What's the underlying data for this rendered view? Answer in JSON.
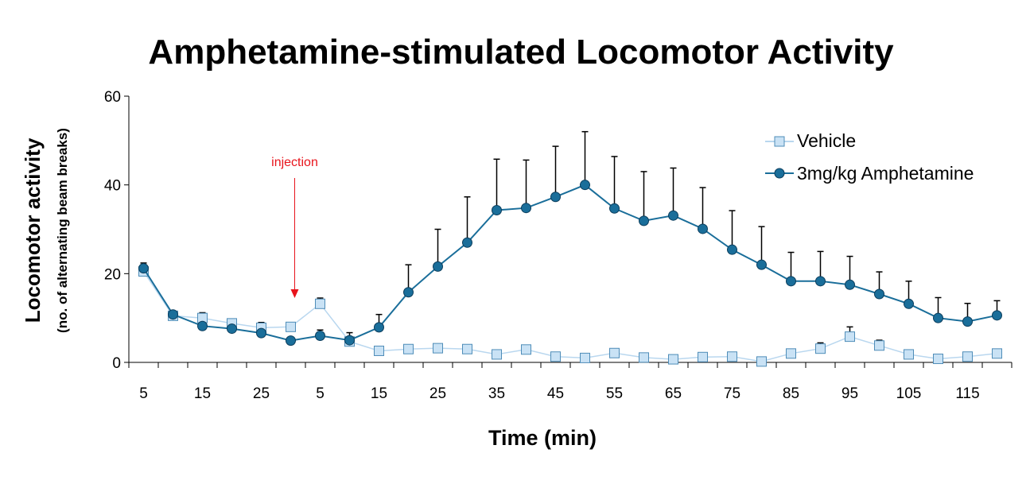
{
  "chart_data": {
    "type": "line",
    "title": "Amphetamine-stimulated Locomotor Activity",
    "ylabel": "Locomotor activity",
    "ylabel_sub": "(no. of alternating beam breaks)",
    "xlabel": "Time (min)",
    "ylim": [
      0,
      60
    ],
    "yticks": [
      0,
      20,
      40,
      60
    ],
    "x_tick_labels": [
      "5",
      "15",
      "25",
      "5",
      "15",
      "25",
      "35",
      "45",
      "55",
      "65",
      "75",
      "85",
      "95",
      "105",
      "115"
    ],
    "x": [
      "5",
      "10",
      "15",
      "20",
      "25",
      "30",
      "5",
      "10",
      "15",
      "20",
      "25",
      "30",
      "35",
      "40",
      "45",
      "50",
      "55",
      "60",
      "65",
      "70",
      "75",
      "80",
      "85",
      "90",
      "95",
      "100",
      "105",
      "110",
      "115",
      "120"
    ],
    "legend_position": "top-right",
    "annotation": {
      "text": "injection",
      "at_index": 5
    },
    "series": [
      {
        "name": "Vehicle",
        "color": "#b9d7ef",
        "marker": "square",
        "values": [
          20.5,
          10.5,
          10.0,
          8.8,
          7.8,
          8.0,
          13.2,
          4.7,
          2.6,
          3.0,
          3.2,
          3.0,
          1.8,
          2.9,
          1.3,
          1.0,
          2.1,
          1.1,
          0.7,
          1.2,
          1.3,
          0.2,
          2.0,
          3.1,
          5.8,
          3.8,
          1.8,
          0.8,
          1.3,
          2.0
        ],
        "errors": [
          1.5,
          1.0,
          1.2,
          1.0,
          1.2,
          1.0,
          1.3,
          0.8,
          0.5,
          0.5,
          0.5,
          0.8,
          0.5,
          0.8,
          0.4,
          0.3,
          0.5,
          0.3,
          0.3,
          0.3,
          0.3,
          0.2,
          0.8,
          1.3,
          2.2,
          1.2,
          0.5,
          0.3,
          0.3,
          0.4
        ]
      },
      {
        "name": "3mg/kg Amphetamine",
        "color": "#1a6e9a",
        "marker": "circle",
        "values": [
          21.2,
          10.8,
          8.2,
          7.6,
          6.6,
          4.9,
          6.0,
          5.0,
          7.9,
          15.8,
          21.6,
          27.0,
          34.3,
          34.8,
          37.3,
          40.0,
          34.7,
          31.9,
          33.1,
          30.1,
          25.4,
          22.0,
          18.3,
          18.3,
          17.5,
          15.4,
          13.2,
          10.0,
          9.2,
          10.6
        ],
        "errors": [
          1.2,
          0.8,
          0.8,
          0.8,
          0.8,
          0.8,
          1.3,
          1.7,
          2.9,
          6.2,
          8.4,
          10.3,
          11.5,
          10.8,
          11.4,
          12.0,
          11.7,
          11.1,
          10.7,
          9.3,
          8.8,
          8.6,
          6.5,
          6.7,
          6.4,
          5.0,
          5.1,
          4.6,
          4.1,
          3.3
        ]
      }
    ]
  }
}
